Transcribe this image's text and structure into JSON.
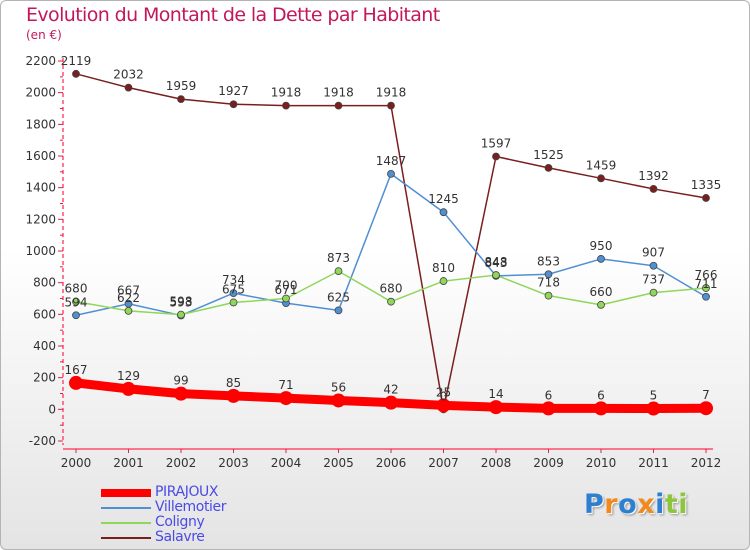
{
  "chart_data": {
    "type": "line",
    "title": "Evolution du Montant de la Dette par Habitant",
    "unit_label": "(en €)",
    "x": [
      "2000",
      "2001",
      "2002",
      "2003",
      "2004",
      "2005",
      "2006",
      "2007",
      "2008",
      "2009",
      "2010",
      "2011",
      "2012"
    ],
    "ylim": [
      -200,
      2200
    ],
    "yticks": [
      -200,
      0,
      200,
      400,
      600,
      800,
      1000,
      1200,
      1400,
      1600,
      1800,
      2000,
      2200
    ],
    "grid": false,
    "legend_position": "bottom-left",
    "series": [
      {
        "name": "Salavre",
        "color": "#7a1e1e",
        "values": [
          2119,
          2032,
          1959,
          1927,
          1918,
          1918,
          1918,
          0,
          1597,
          1525,
          1459,
          1392,
          1335
        ],
        "labels": [
          "2119",
          "2032",
          "1959",
          "1927",
          "1918",
          "1918",
          "1918",
          "0",
          "1597",
          "1525",
          "1459",
          "1392",
          "1335"
        ]
      },
      {
        "name": "Villemotier",
        "color": "#4f8fd2",
        "values": [
          594,
          667,
          593,
          734,
          671,
          625,
          1487,
          1245,
          843,
          853,
          950,
          907,
          711
        ],
        "labels": [
          "594",
          "667",
          "593",
          "734",
          "671",
          "625",
          "1487",
          "1245",
          "843",
          "853",
          "950",
          "907",
          "711"
        ]
      },
      {
        "name": "Coligny",
        "color": "#8fd65a",
        "values": [
          680,
          622,
          598,
          675,
          700,
          873,
          680,
          810,
          848,
          718,
          660,
          737,
          766
        ],
        "labels": [
          "680",
          "622",
          "598",
          "675",
          "700",
          "873",
          "680",
          "810",
          "848",
          "718",
          "660",
          "737",
          "766"
        ]
      },
      {
        "name": "PIRAJOUX",
        "color": "#ff0000",
        "values": [
          167,
          129,
          99,
          85,
          71,
          56,
          42,
          25,
          14,
          6,
          6,
          5,
          7
        ],
        "labels": [
          "167",
          "129",
          "99",
          "85",
          "71",
          "56",
          "42",
          "25",
          "14",
          "6",
          "6",
          "5",
          "7"
        ]
      }
    ],
    "legend": [
      {
        "name": "PIRAJOUX",
        "color": "#ff0000",
        "weight": "thick"
      },
      {
        "name": "Villemotier",
        "color": "#4f8fd2",
        "weight": "thin"
      },
      {
        "name": "Coligny",
        "color": "#8fd65a",
        "weight": "thin"
      },
      {
        "name": "Salavre",
        "color": "#7a1e1e",
        "weight": "thin"
      }
    ]
  },
  "logo": {
    "letters": [
      {
        "ch": "P",
        "color": "#2e7fd0"
      },
      {
        "ch": "r",
        "color": "#f08a1c"
      },
      {
        "ch": "o",
        "color": "#2e7fd0"
      },
      {
        "ch": "x",
        "color": "#f08a1c"
      },
      {
        "ch": "i",
        "color": "#2e7fd0"
      },
      {
        "ch": "t",
        "color": "#8cc63f"
      },
      {
        "ch": "i",
        "color": "#8cc63f"
      }
    ]
  }
}
